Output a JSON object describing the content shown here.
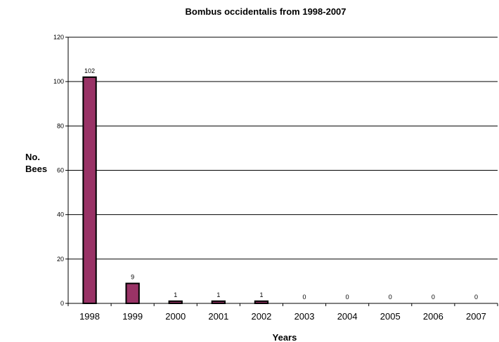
{
  "chart_data": {
    "type": "bar",
    "title": "Bombus occidentalis from 1998-2007",
    "xlabel": "Years",
    "ylabel": [
      "No.",
      "Bees"
    ],
    "categories": [
      "1998",
      "1999",
      "2000",
      "2001",
      "2002",
      "2003",
      "2004",
      "2005",
      "2006",
      "2007"
    ],
    "values": [
      102,
      9,
      1,
      1,
      1,
      0,
      0,
      0,
      0,
      0
    ],
    "data_labels": [
      "102",
      "9",
      "1",
      "1",
      "1",
      "0",
      "0",
      "0",
      "0",
      "0"
    ],
    "yticks": [
      "0",
      "20",
      "40",
      "60",
      "80",
      "100",
      "120"
    ],
    "ylim": [
      0,
      120
    ],
    "grid": true,
    "legend": "none",
    "bar_color": "#993366",
    "bar_outline": "#000000"
  }
}
